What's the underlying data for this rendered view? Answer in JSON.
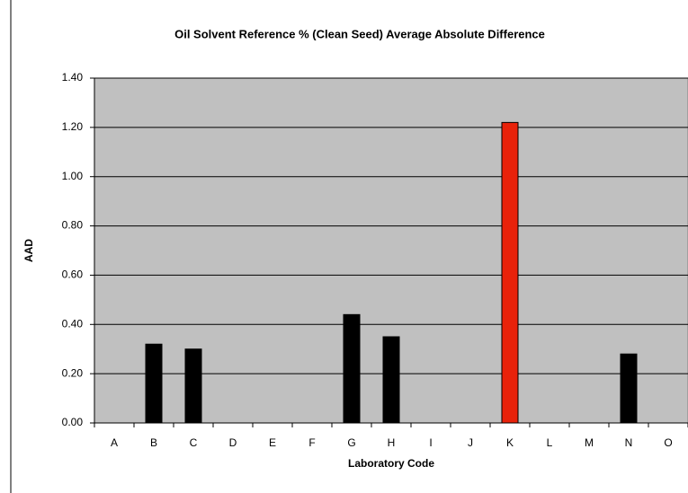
{
  "chart_data": {
    "type": "bar",
    "title": "Oil Solvent Reference % (Clean Seed) Average Absolute Difference",
    "x_label": "Laboratory Code",
    "y_label": "AAD",
    "categories": [
      "A",
      "B",
      "C",
      "D",
      "E",
      "F",
      "G",
      "H",
      "I",
      "J",
      "K",
      "L",
      "M",
      "N",
      "O"
    ],
    "values": [
      null,
      0.32,
      0.3,
      null,
      null,
      null,
      0.44,
      0.35,
      null,
      null,
      1.22,
      null,
      null,
      0.28,
      null
    ],
    "colors": [
      "#000000",
      "#000000",
      "#000000",
      "#000000",
      "#000000",
      "#000000",
      "#000000",
      "#000000",
      "#000000",
      "#000000",
      "#e8220a",
      "#000000",
      "#000000",
      "#000000",
      "#000000"
    ],
    "ylim": [
      0,
      1.4
    ],
    "yticks": [
      {
        "value": 0,
        "label": "0.00"
      },
      {
        "value": 0.2,
        "label": "0.20"
      },
      {
        "value": 0.4,
        "label": "0.40"
      },
      {
        "value": 0.6,
        "label": "0.60"
      },
      {
        "value": 0.8,
        "label": "0.80"
      },
      {
        "value": 1.0,
        "label": "1.00"
      },
      {
        "value": 1.2,
        "label": "1.20"
      },
      {
        "value": 1.4,
        "label": "1.40"
      }
    ],
    "grid": true,
    "background": "#c0c0c0"
  }
}
